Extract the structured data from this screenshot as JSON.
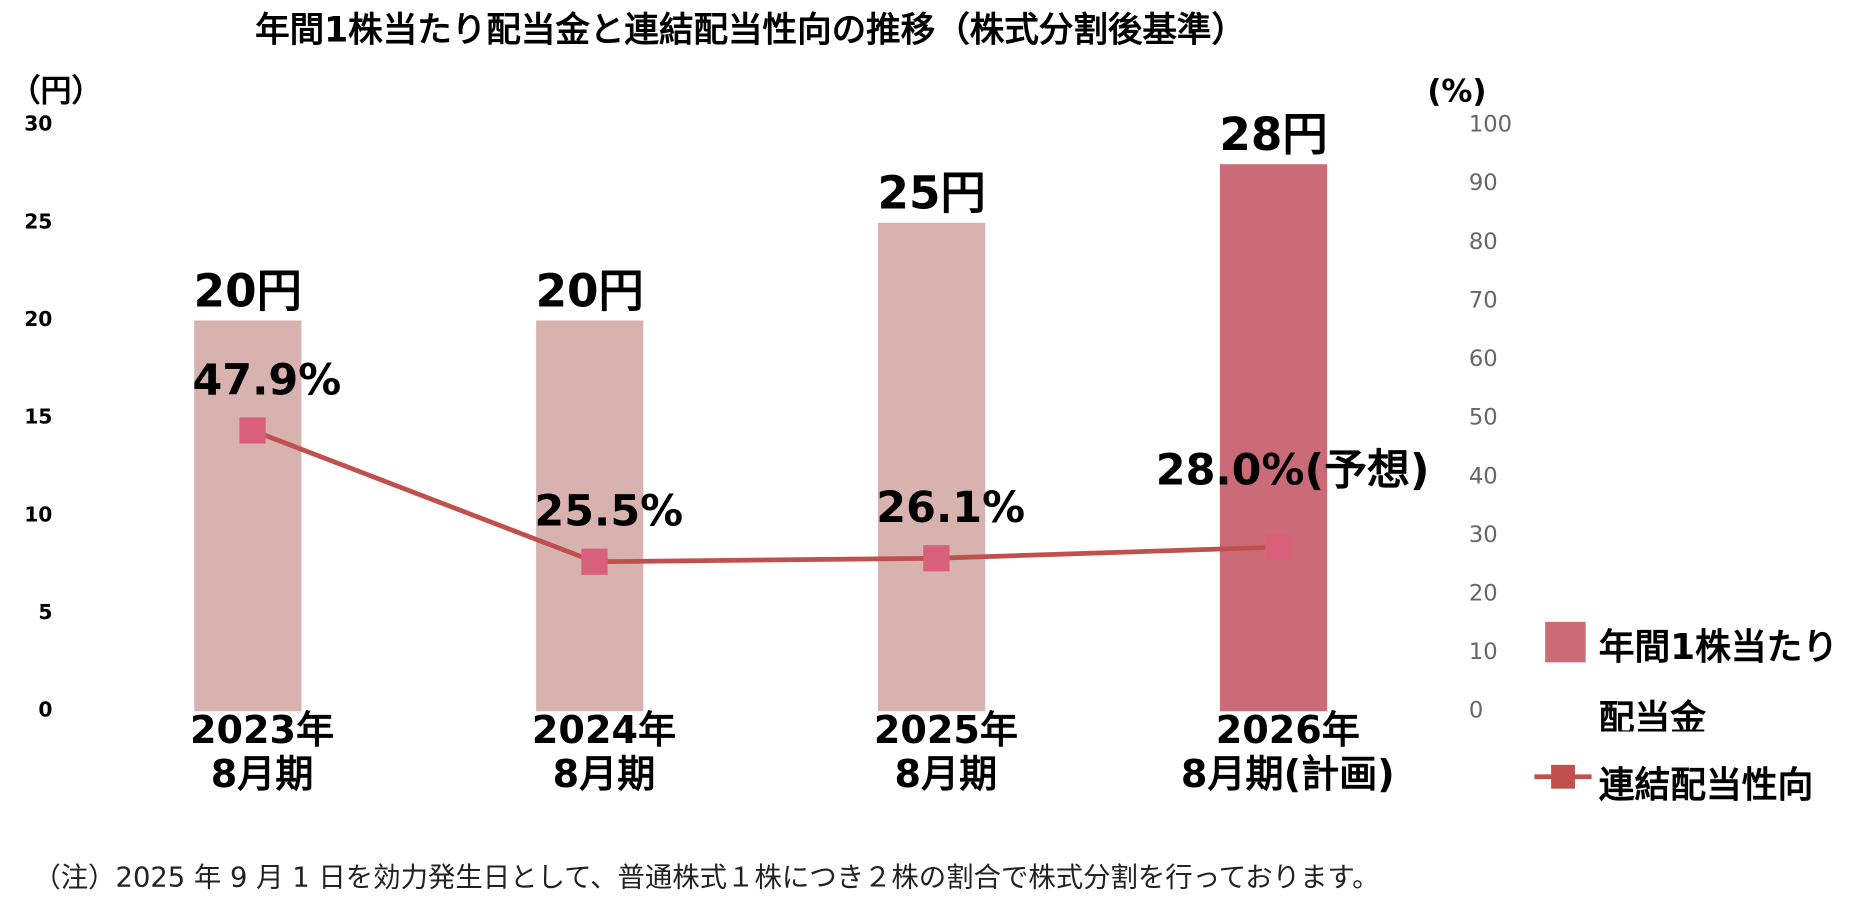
{
  "chart_data": {
    "type": "bar_line",
    "title": "年間1株当たり配当金と連結配当性向の推移（株式分割後基準）",
    "ylabel": "（円）",
    "y2label": "(%)",
    "categories": [
      [
        "2023年",
        "8月期"
      ],
      [
        "2024年",
        "8月期"
      ],
      [
        "2025年",
        "8月期"
      ],
      [
        "2026年",
        "8月期(計画)"
      ]
    ],
    "ylim": [
      0,
      30
    ],
    "yticks": [
      0,
      5,
      10,
      15,
      20,
      25,
      30
    ],
    "y2lim": [
      0,
      100
    ],
    "y2ticks": [
      0,
      10,
      20,
      30,
      40,
      50,
      60,
      70,
      80,
      90,
      100
    ],
    "series": [
      {
        "name": "年間1株当たり配当金",
        "type": "bar",
        "color": "#cc6b78",
        "colors": [
          "#d8b2ae",
          "#d8b2ae",
          "#d8b2ae",
          "#cc6b78"
        ],
        "values": [
          20,
          20,
          25,
          28
        ],
        "value_labels": [
          "20円",
          "20円",
          "25円",
          "28円"
        ]
      },
      {
        "name": "連結配当性向",
        "type": "line",
        "axis": "y2",
        "color": "#c0504d",
        "marker_color": "#d9607a",
        "values": [
          47.9,
          25.5,
          26.1,
          28.0
        ],
        "value_labels": [
          "47.9%",
          "25.5%",
          "26.1%",
          "28.0%(予想)"
        ]
      }
    ],
    "legend": "right",
    "note": "（注）2025 年 9 月 1 日を効力発生日として、普通株式１株につき２株の割合で株式分割を行っております。"
  }
}
